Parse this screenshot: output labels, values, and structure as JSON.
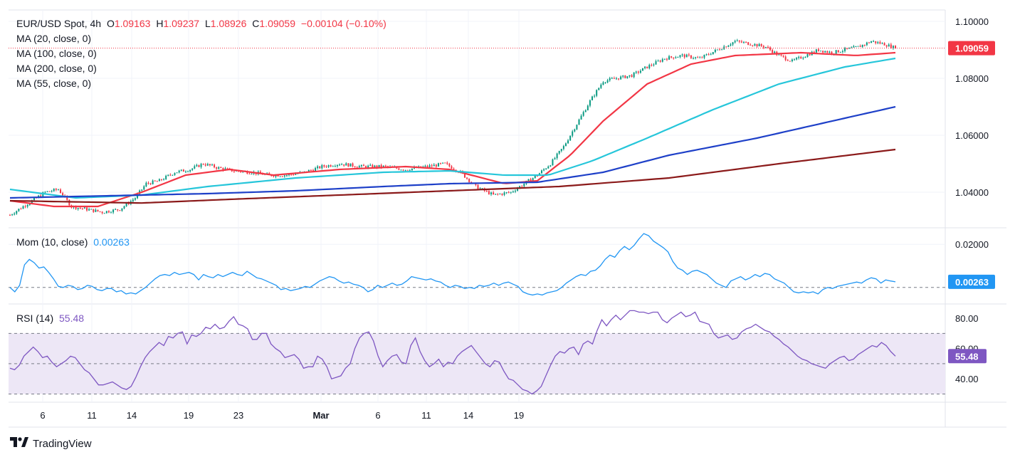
{
  "header": {
    "symbol": "EUR/USD Spot, 4h",
    "o_label": "O",
    "o": "1.09163",
    "h_label": "H",
    "h": "1.09237",
    "l_label": "L",
    "l": "1.08926",
    "c_label": "C",
    "c": "1.09059",
    "change": "−0.00104 (−0.10%)"
  },
  "ma_legend": [
    "MA (20, close, 0)",
    "MA (100, close, 0)",
    "MA (200, close, 0)",
    "MA (55, close, 0)"
  ],
  "mom_legend": {
    "label": "Mom (10, close)",
    "value": "0.00263"
  },
  "rsi_legend": {
    "label": "RSI (14)",
    "value": "55.48"
  },
  "brand": "TradingView",
  "colors": {
    "up": "#089981",
    "down": "#f23645",
    "ma20": "#f23645",
    "ma55": "#26c6da",
    "ma100": "#1e40c8",
    "ma200": "#8b1a1a",
    "mom": "#2196f3",
    "rsi": "#7e57c2",
    "rsi_band": "#ede7f6"
  },
  "chart_data": [
    {
      "type": "line",
      "title": "EUR/USD Spot, 4h",
      "x_tick_labels": [
        "6",
        "11",
        "14",
        "19",
        "23",
        "Mar",
        "6",
        "11",
        "14",
        "19"
      ],
      "y_tick_labels": [
        "1.10000",
        "1.08000",
        "1.06000",
        "1.04000"
      ],
      "ylim": [
        1.028,
        1.104
      ],
      "last_price_label": "1.09059",
      "last_price": 1.09059,
      "grid": true,
      "close_path": [
        [
          0,
          1.032
        ],
        [
          8,
          1.036
        ],
        [
          16,
          1.04
        ],
        [
          22,
          1.041
        ],
        [
          28,
          1.035
        ],
        [
          35,
          1.034
        ],
        [
          42,
          1.033
        ],
        [
          50,
          1.034
        ],
        [
          57,
          1.038
        ],
        [
          62,
          1.043
        ],
        [
          68,
          1.044
        ],
        [
          75,
          1.047
        ],
        [
          82,
          1.048
        ],
        [
          88,
          1.05
        ],
        [
          95,
          1.0485
        ],
        [
          102,
          1.0475
        ],
        [
          110,
          1.047
        ],
        [
          118,
          1.046
        ],
        [
          126,
          1.046
        ],
        [
          134,
          1.047
        ],
        [
          142,
          1.049
        ],
        [
          150,
          1.05
        ],
        [
          160,
          1.049
        ],
        [
          170,
          1.049
        ],
        [
          180,
          1.048
        ],
        [
          190,
          1.049
        ],
        [
          198,
          1.05
        ],
        [
          205,
          1.047
        ],
        [
          212,
          1.042
        ],
        [
          220,
          1.039
        ],
        [
          228,
          1.04
        ],
        [
          234,
          1.043
        ],
        [
          240,
          1.046
        ],
        [
          246,
          1.05
        ],
        [
          252,
          1.056
        ],
        [
          258,
          1.064
        ],
        [
          264,
          1.072
        ],
        [
          270,
          1.079
        ],
        [
          276,
          1.08
        ],
        [
          283,
          1.081
        ],
        [
          290,
          1.084
        ],
        [
          298,
          1.087
        ],
        [
          306,
          1.088
        ],
        [
          314,
          1.087
        ],
        [
          322,
          1.09
        ],
        [
          330,
          1.093
        ],
        [
          338,
          1.092
        ],
        [
          344,
          1.091
        ],
        [
          350,
          1.088
        ],
        [
          356,
          1.086
        ],
        [
          362,
          1.088
        ],
        [
          368,
          1.09
        ],
        [
          374,
          1.089
        ],
        [
          380,
          1.09
        ],
        [
          386,
          1.091
        ],
        [
          392,
          1.093
        ],
        [
          398,
          1.092
        ],
        [
          403,
          1.0906
        ]
      ],
      "series": [
        {
          "name": "MA (20, close, 0)",
          "points": [
            [
              0,
              1.037
            ],
            [
              20,
              1.035
            ],
            [
              40,
              1.035
            ],
            [
              60,
              1.04
            ],
            [
              80,
              1.046
            ],
            [
              100,
              1.048
            ],
            [
              120,
              1.046
            ],
            [
              150,
              1.048
            ],
            [
              180,
              1.049
            ],
            [
              200,
              1.048
            ],
            [
              225,
              1.043
            ],
            [
              240,
              1.044
            ],
            [
              255,
              1.053
            ],
            [
              270,
              1.065
            ],
            [
              290,
              1.078
            ],
            [
              310,
              1.085
            ],
            [
              330,
              1.088
            ],
            [
              360,
              1.089
            ],
            [
              385,
              1.088
            ],
            [
              403,
              1.089
            ]
          ]
        },
        {
          "name": "MA (55, close, 0)",
          "points": [
            [
              0,
              1.041
            ],
            [
              30,
              1.038
            ],
            [
              60,
              1.039
            ],
            [
              90,
              1.042
            ],
            [
              130,
              1.045
            ],
            [
              170,
              1.047
            ],
            [
              200,
              1.0475
            ],
            [
              225,
              1.046
            ],
            [
              245,
              1.046
            ],
            [
              265,
              1.051
            ],
            [
              290,
              1.059
            ],
            [
              320,
              1.069
            ],
            [
              350,
              1.078
            ],
            [
              380,
              1.084
            ],
            [
              403,
              1.087
            ]
          ]
        },
        {
          "name": "MA (100, close, 0)",
          "points": [
            [
              0,
              1.038
            ],
            [
              30,
              1.0385
            ],
            [
              60,
              1.039
            ],
            [
              90,
              1.0395
            ],
            [
              130,
              1.0405
            ],
            [
              170,
              1.042
            ],
            [
              200,
              1.043
            ],
            [
              240,
              1.0435
            ],
            [
              270,
              1.047
            ],
            [
              300,
              1.053
            ],
            [
              340,
              1.059
            ],
            [
              380,
              1.066
            ],
            [
              403,
              1.07
            ]
          ]
        },
        {
          "name": "MA (200, close, 0)",
          "points": [
            [
              0,
              1.037
            ],
            [
              60,
              1.0362
            ],
            [
              100,
              1.0375
            ],
            [
              150,
              1.039
            ],
            [
              200,
              1.0405
            ],
            [
              250,
              1.042
            ],
            [
              300,
              1.045
            ],
            [
              350,
              1.05
            ],
            [
              403,
              1.055
            ]
          ]
        }
      ]
    },
    {
      "type": "line",
      "title": "Mom (10, close)",
      "y_tick_labels": [
        "0.02000"
      ],
      "ylim": [
        -0.007,
        0.027
      ],
      "zero_line": 0,
      "last_value_label": "0.00263",
      "series": [
        {
          "name": "Mom (10, close)",
          "values": [
            0.0,
            -0.002,
            0.001,
            0.0105,
            0.013,
            0.0115,
            0.009,
            0.0095,
            0.007,
            0.004,
            0.0005,
            0.0,
            0.001,
            0.0005,
            -0.001,
            -0.0005,
            0.001,
            0.0005,
            -0.001,
            -0.0015,
            -0.0005,
            -0.0005,
            -0.002,
            -0.0015,
            -0.003,
            -0.0025,
            -0.003,
            -0.0015,
            0.0,
            0.002,
            0.004,
            0.0055,
            0.006,
            0.0055,
            0.007,
            0.006,
            0.0065,
            0.007,
            0.006,
            0.0035,
            0.006,
            0.005,
            0.0045,
            0.006,
            0.005,
            0.006,
            0.007,
            0.006,
            0.0055,
            0.0075,
            0.006,
            0.0045,
            0.004,
            0.003,
            0.002,
            0.001,
            -0.001,
            -0.0005,
            -0.0015,
            -0.001,
            -0.0005,
            0.0005,
            0.0,
            0.0015,
            0.003,
            0.004,
            0.005,
            0.0045,
            0.003,
            0.002,
            0.0025,
            0.0015,
            0.001,
            0.0,
            -0.002,
            -0.001,
            0.001,
            0.0,
            0.001,
            0.002,
            0.001,
            0.0015,
            0.003,
            0.005,
            0.0045,
            0.004,
            0.0035,
            0.004,
            0.003,
            0.0025,
            0.001,
            0.0,
            0.001,
            0.0005,
            -0.0005,
            0.0,
            -0.0005,
            0.001,
            0.0005,
            0.001,
            0.002,
            0.001,
            0.002,
            0.0025,
            0.0015,
            0.0005,
            -0.002,
            -0.003,
            -0.0035,
            -0.003,
            -0.0035,
            -0.0025,
            -0.002,
            -0.0015,
            0.0,
            0.002,
            0.0035,
            0.005,
            0.006,
            0.0055,
            0.0075,
            0.008,
            0.01,
            0.013,
            0.015,
            0.014,
            0.017,
            0.019,
            0.0175,
            0.0195,
            0.0225,
            0.025,
            0.024,
            0.0215,
            0.02,
            0.0185,
            0.0165,
            0.012,
            0.009,
            0.008,
            0.006,
            0.0075,
            0.008,
            0.007,
            0.006,
            0.004,
            0.002,
            0.001,
            0.0,
            0.003,
            0.004,
            0.005,
            0.0035,
            0.0045,
            0.006,
            0.005,
            0.0065,
            0.006,
            0.004,
            0.003,
            0.002,
            0.0,
            -0.002,
            -0.0025,
            -0.002,
            -0.0025,
            -0.002,
            -0.003,
            -0.001,
            0.0,
            -0.0005,
            0.0005,
            0.001,
            0.0015,
            0.002,
            0.0025,
            0.002,
            0.0035,
            0.0045,
            0.004,
            0.002,
            0.0035,
            0.003,
            0.0026
          ]
        }
      ]
    },
    {
      "type": "line",
      "title": "RSI (14)",
      "y_tick_labels": [
        "80.00",
        "60.00",
        "40.00"
      ],
      "ylim": [
        26,
        88
      ],
      "bands": [
        70,
        50,
        30
      ],
      "last_value_label": "55.48",
      "series": [
        {
          "name": "RSI (14)",
          "values": [
            47,
            46,
            49,
            55,
            58,
            61,
            58,
            54,
            55,
            51,
            48,
            50,
            52,
            55,
            54,
            50,
            46,
            44,
            40,
            36,
            36,
            37,
            38,
            36,
            34,
            33,
            35,
            41,
            48,
            54,
            58,
            61,
            64,
            62,
            68,
            67,
            70,
            71,
            63,
            69,
            68,
            70,
            74,
            73,
            76,
            73,
            74,
            78,
            81,
            76,
            75,
            73,
            66,
            66,
            70,
            70,
            63,
            60,
            58,
            54,
            55,
            56,
            53,
            47,
            48,
            48,
            55,
            53,
            48,
            40,
            41,
            42,
            47,
            50,
            60,
            67,
            70,
            71,
            65,
            55,
            48,
            52,
            55,
            56,
            51,
            50,
            62,
            67,
            58,
            52,
            48,
            50,
            53,
            48,
            51,
            50,
            55,
            58,
            60,
            62,
            58,
            54,
            50,
            48,
            52,
            51,
            45,
            40,
            39,
            36,
            33,
            32,
            30,
            32,
            35,
            42,
            49,
            55,
            58,
            57,
            60,
            61,
            56,
            63,
            65,
            63,
            72,
            79,
            75,
            79,
            82,
            79,
            82,
            85,
            85,
            84,
            84,
            83,
            84,
            84,
            79,
            77,
            80,
            82,
            84,
            81,
            82,
            84,
            78,
            77,
            76,
            70,
            67,
            68,
            69,
            66,
            67,
            71,
            73,
            74,
            76,
            74,
            72,
            71,
            68,
            66,
            63,
            61,
            58,
            55,
            53,
            52,
            50,
            49,
            48,
            47,
            50,
            52,
            54,
            55,
            52,
            53,
            56,
            58,
            60,
            62,
            61,
            64,
            62,
            58,
            55
          ]
        }
      ]
    }
  ]
}
